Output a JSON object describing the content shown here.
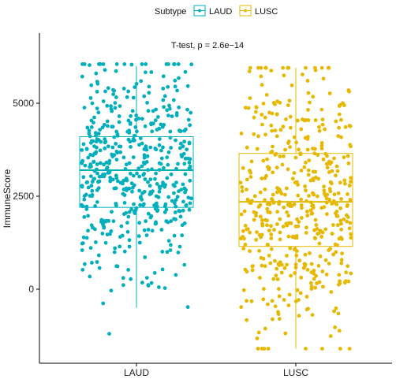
{
  "chart_data": {
    "type": "boxplot-jitter",
    "legend": {
      "title": "Subtype",
      "position": "top",
      "entries": [
        "LAUD",
        "LUSC"
      ]
    },
    "annotation": "T-test, p = 2.6e−14",
    "ylabel": "ImmuneScore",
    "xlabel": "",
    "ylim": [
      -2000,
      6500
    ],
    "yticks": [
      0,
      2500,
      5000
    ],
    "ytick_labels": [
      "0",
      "2500",
      "5000"
    ],
    "categories": [
      "LAUD",
      "LUSC"
    ],
    "series": [
      {
        "name": "LAUD",
        "color": "#00AFBB",
        "box": {
          "whisker_low": -500,
          "q1": 2200,
          "median": 3200,
          "q3": 4100,
          "whisker_high": 6000
        },
        "n_points": 520,
        "range": [
          -1200,
          6050
        ],
        "seed": 11
      },
      {
        "name": "LUSC",
        "color": "#E7B800",
        "box": {
          "whisker_low": -1600,
          "q1": 1150,
          "median": 2350,
          "q3": 3650,
          "whisker_high": 5950
        },
        "n_points": 500,
        "range": [
          -1600,
          5950
        ],
        "seed": 29
      }
    ]
  }
}
